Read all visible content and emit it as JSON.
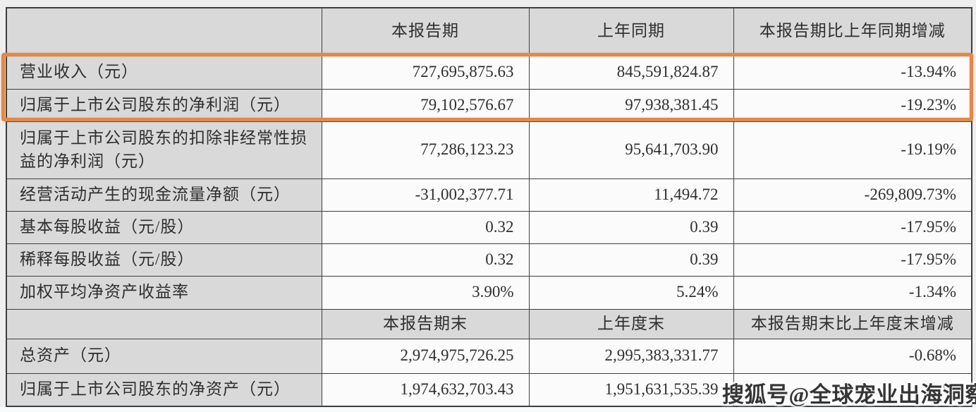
{
  "colors": {
    "highlight_border": "#e0894a",
    "header_background": "#d9d9d9",
    "cell_background": "#fbfbfb",
    "border": "#3f3f3f",
    "page_background": "#eeeeee"
  },
  "table": {
    "sections": [
      {
        "header": [
          "",
          "本报告期",
          "上年同期",
          "本报告期比上年同期增减"
        ],
        "rows": [
          {
            "label": "营业收入（元）",
            "highlighted": true,
            "values": [
              "727,695,875.63",
              "845,591,824.87",
              "-13.94%"
            ]
          },
          {
            "label": "归属于上市公司股东的净利润（元）",
            "highlighted": true,
            "values": [
              "79,102,576.67",
              "97,938,381.45",
              "-19.23%"
            ]
          },
          {
            "label": "归属于上市公司股东的扣除非经常性损益的净利润（元）",
            "highlighted": false,
            "values": [
              "77,286,123.23",
              "95,641,703.90",
              "-19.19%"
            ]
          },
          {
            "label": "经营活动产生的现金流量净额（元）",
            "highlighted": false,
            "values": [
              "-31,002,377.71",
              "11,494.72",
              "-269,809.73%"
            ]
          },
          {
            "label": "基本每股收益（元/股）",
            "highlighted": false,
            "values": [
              "0.32",
              "0.39",
              "-17.95%"
            ]
          },
          {
            "label": "稀释每股收益（元/股）",
            "highlighted": false,
            "values": [
              "0.32",
              "0.39",
              "-17.95%"
            ]
          },
          {
            "label": "加权平均净资产收益率",
            "highlighted": false,
            "values": [
              "3.90%",
              "5.24%",
              "-1.34%"
            ]
          }
        ]
      },
      {
        "header": [
          "",
          "本报告期末",
          "上年度末",
          "本报告期末比上年度末增减"
        ],
        "rows": [
          {
            "label": "总资产（元）",
            "highlighted": false,
            "values": [
              "2,974,975,726.25",
              "2,995,383,331.77",
              "-0.68%"
            ]
          },
          {
            "label": "归属于上市公司股东的净资产（元）",
            "highlighted": false,
            "values": [
              "1,974,632,703.43",
              "1,951,631,535.39",
              "%"
            ]
          }
        ]
      }
    ]
  },
  "watermark": {
    "text": "搜狐号@全球宠业出海洞察"
  }
}
